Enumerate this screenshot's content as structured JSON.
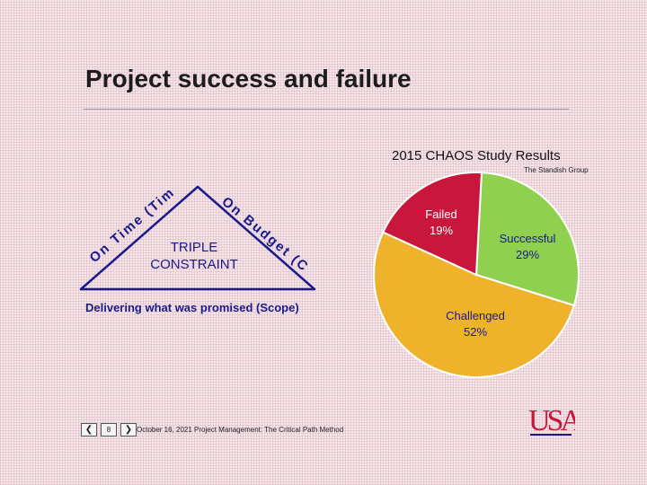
{
  "slide": {
    "title": "Project success and failure",
    "footer": {
      "page_number": "8",
      "text": "October 16, 2021 Project Management: The Critical Path Method",
      "prev_icon": "chevron-left-icon",
      "next_icon": "chevron-right-icon"
    },
    "logo_text": "USA"
  },
  "triangle": {
    "center_label_line1": "TRIPLE",
    "center_label_line2": "CONSTRAINT",
    "left_label": "On Time (Time)",
    "right_label": "On Budget (Cost)",
    "bottom_label": "Delivering what was promised (Scope)",
    "color": "#1a1a8a"
  },
  "chart_data": {
    "type": "pie",
    "title": "2015 CHAOS Study Results",
    "source": "The Standish Group",
    "slices": [
      {
        "name": "Successful",
        "value": 29,
        "label": "29%",
        "color": "#8fd14f"
      },
      {
        "name": "Challenged",
        "value": 52,
        "label": "52%",
        "color": "#efb22b"
      },
      {
        "name": "Failed",
        "value": 19,
        "label": "19%",
        "color": "#c8163c"
      }
    ],
    "colors": {
      "success_text": "#1a1a8a",
      "failed_text": "#ffffff",
      "challenged_text": "#1a1a8a"
    }
  }
}
